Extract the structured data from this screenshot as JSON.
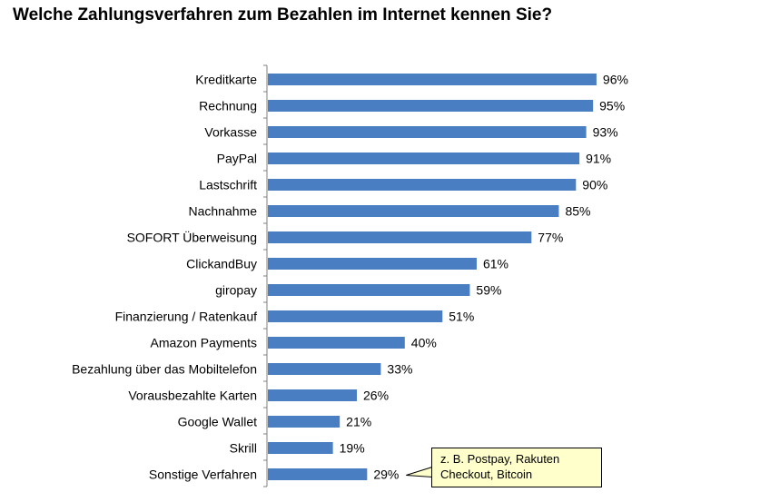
{
  "chart_data": {
    "type": "bar",
    "orientation": "horizontal",
    "title": "Welche Zahlungsverfahren zum Bezahlen im Internet kennen Sie?",
    "categories": [
      "Kreditkarte",
      "Rechnung",
      "Vorkasse",
      "PayPal",
      "Lastschrift",
      "Nachnahme",
      "SOFORT Überweisung",
      "ClickandBuy",
      "giropay",
      "Finanzierung / Ratenkauf",
      "Amazon Payments",
      "Bezahlung über das Mobiltelefon",
      "Vorausbezahlte Karten",
      "Google Wallet",
      "Skrill",
      "Sonstige Verfahren"
    ],
    "values": [
      96,
      95,
      93,
      91,
      90,
      85,
      77,
      61,
      59,
      51,
      40,
      33,
      26,
      21,
      19,
      29
    ],
    "value_labels": [
      "96%",
      "95%",
      "93%",
      "91%",
      "90%",
      "85%",
      "77%",
      "61%",
      "59%",
      "51%",
      "40%",
      "33%",
      "26%",
      "21%",
      "19%",
      "29%"
    ],
    "xlim": [
      0,
      100
    ],
    "bar_color": "#4a7ec2",
    "callout": {
      "line1": "z. B. Postpay, Rakuten",
      "line2": "Checkout, Bitcoin",
      "background": "#ffffcc"
    }
  }
}
